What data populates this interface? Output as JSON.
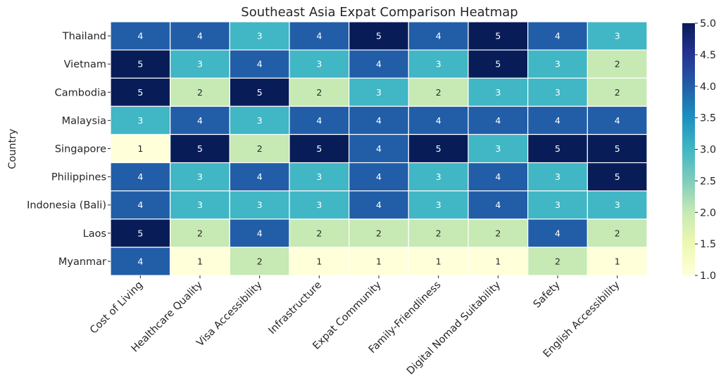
{
  "chart_data": {
    "type": "heatmap",
    "title": "Southeast Asia Expat Comparison Heatmap",
    "ylabel": "Country",
    "xlabel": "",
    "rows": [
      "Thailand",
      "Vietnam",
      "Cambodia",
      "Malaysia",
      "Singapore",
      "Philippines",
      "Indonesia (Bali)",
      "Laos",
      "Myanmar"
    ],
    "columns": [
      "Cost of Living",
      "Healthcare Quality",
      "Visa Accessibility",
      "Infrastructure",
      "Expat Community",
      "Family-Friendliness",
      "Digital Nomad Suitability",
      "Safety",
      "English Accessibility"
    ],
    "values": [
      [
        4,
        4,
        3,
        4,
        5,
        4,
        5,
        4,
        3
      ],
      [
        5,
        3,
        4,
        3,
        4,
        3,
        5,
        3,
        2
      ],
      [
        5,
        2,
        5,
        2,
        3,
        2,
        3,
        3,
        2
      ],
      [
        3,
        4,
        3,
        4,
        4,
        4,
        4,
        4,
        4
      ],
      [
        1,
        5,
        2,
        5,
        4,
        5,
        3,
        5,
        5
      ],
      [
        4,
        3,
        4,
        3,
        4,
        3,
        4,
        3,
        5
      ],
      [
        4,
        3,
        3,
        3,
        4,
        3,
        4,
        3,
        3
      ],
      [
        5,
        2,
        4,
        2,
        2,
        2,
        2,
        4,
        2
      ],
      [
        4,
        1,
        2,
        1,
        1,
        1,
        1,
        2,
        1
      ]
    ],
    "colorbar": {
      "range": [
        1.0,
        5.0
      ],
      "ticks": [
        "1.0",
        "1.5",
        "2.0",
        "2.5",
        "3.0",
        "3.5",
        "4.0",
        "4.5",
        "5.0"
      ],
      "colormap": "YlGnBu"
    },
    "value_colors": {
      "1": "#ffffd9",
      "2": "#c7e9b4",
      "3": "#41b6c4",
      "4": "#225ea8",
      "5": "#081d58"
    },
    "annotations": true
  }
}
